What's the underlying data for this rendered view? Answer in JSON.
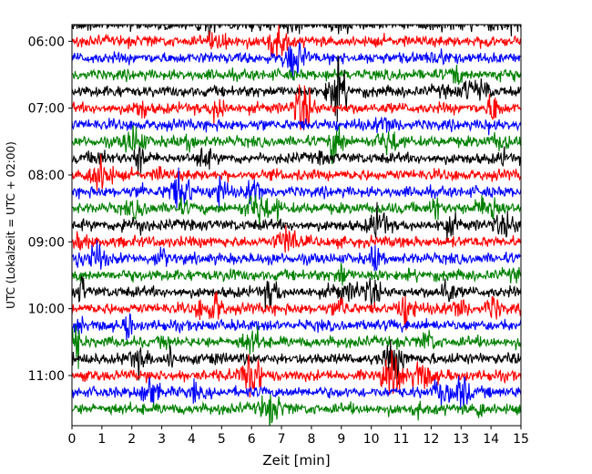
{
  "chart_data": {
    "type": "line",
    "title": "",
    "xlabel": "Zeit  [min]",
    "ylabel": "UTC (Lokalzeit = UTC + 02:00)",
    "xlim": [
      0,
      15
    ],
    "x_ticks": [
      0,
      1,
      2,
      3,
      4,
      5,
      6,
      7,
      8,
      9,
      10,
      11,
      12,
      13,
      14,
      15
    ],
    "y_time_range": [
      "05:45",
      "11:45"
    ],
    "y_ticks": [
      "06:00",
      "07:00",
      "08:00",
      "09:00",
      "10:00",
      "11:00"
    ],
    "trace_interval_min": 15,
    "trace_start": "05:45",
    "trace_count": 24,
    "trace_colors": [
      "#000000",
      "#ff0000",
      "#0000ff",
      "#008000"
    ],
    "grid": false,
    "legend": "none",
    "series_description": "Helicorder seismogram: each row is a 15-minute trace, offset by start time; colors cycle black, red, blue, green"
  }
}
